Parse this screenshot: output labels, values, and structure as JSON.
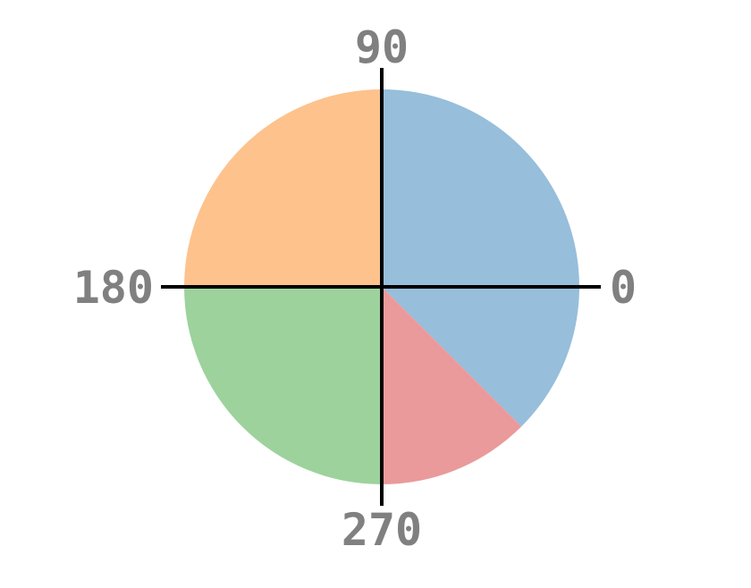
{
  "chart_data": {
    "type": "pie",
    "title": "",
    "start_angle_deg": -45,
    "direction": "counterclockwise",
    "slices": [
      {
        "value": 135,
        "color": "#97bedb"
      },
      {
        "value": 90,
        "color": "#fec28d"
      },
      {
        "value": 90,
        "color": "#9dd29c"
      },
      {
        "value": 45,
        "color": "#ea9a9b"
      }
    ],
    "angle_labels": [
      {
        "angle": 0,
        "text": "0"
      },
      {
        "angle": 90,
        "text": "90"
      },
      {
        "angle": 180,
        "text": "180"
      },
      {
        "angle": 270,
        "text": "270"
      }
    ],
    "legend": "none",
    "grid": false
  }
}
